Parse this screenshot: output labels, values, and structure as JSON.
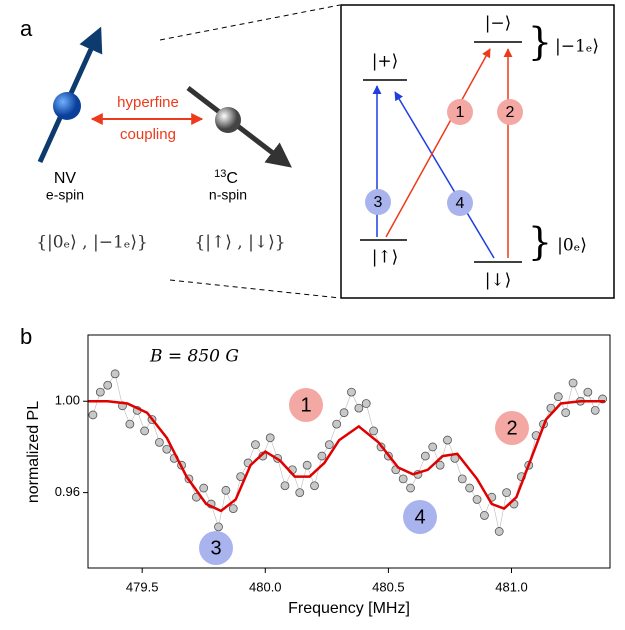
{
  "panel_a": {
    "label": "a",
    "hyperfine": "hyperfine",
    "coupling": "coupling",
    "nv": "NV",
    "e_spin": "e-spin",
    "c13_mass": "13",
    "c13_element": "C",
    "n_spin": "n-spin",
    "e_basis": "{|0ₑ⟩ , |−1ₑ⟩}",
    "n_basis": "{|↑⟩ , |↓⟩}",
    "levels": {
      "plus": "|+⟩",
      "minus": "|−⟩",
      "up": "|↑⟩",
      "down": "|↓⟩",
      "upper_manifold": "|−1ₑ⟩",
      "lower_manifold": "|0ₑ⟩"
    },
    "transitions": [
      "1",
      "2",
      "3",
      "4"
    ]
  },
  "chart_data": {
    "type": "scatter",
    "panel_label": "b",
    "annotation": "B = 850 G",
    "x_label": "Frequency [MHz]",
    "y_label": "normalized PL",
    "xlim": [
      479.28,
      481.4
    ],
    "ylim": [
      0.927,
      1.029
    ],
    "xticks": [
      479.5,
      {
        "value": 480.0,
        "label": "480.0"
      },
      480.5,
      {
        "value": 481.0,
        "label": "481.0"
      }
    ],
    "yticks": [
      {
        "value": 0.96,
        "label": "0.96"
      },
      {
        "value": 1.0,
        "label": "1.00"
      }
    ],
    "series": [
      {
        "name": "data",
        "color": "#c8c8c8",
        "x": [
          479.3,
          479.33,
          479.36,
          479.39,
          479.42,
          479.45,
          479.48,
          479.51,
          479.54,
          479.57,
          479.6,
          479.63,
          479.66,
          479.69,
          479.72,
          479.75,
          479.78,
          479.81,
          479.84,
          479.87,
          479.9,
          479.93,
          479.96,
          479.99,
          480.02,
          480.05,
          480.08,
          480.11,
          480.14,
          480.17,
          480.2,
          480.23,
          480.26,
          480.29,
          480.32,
          480.35,
          480.38,
          480.41,
          480.44,
          480.47,
          480.5,
          480.53,
          480.56,
          480.59,
          480.62,
          480.65,
          480.68,
          480.71,
          480.74,
          480.77,
          480.8,
          480.83,
          480.86,
          480.89,
          480.92,
          480.95,
          480.98,
          481.01,
          481.04,
          481.07,
          481.1,
          481.13,
          481.16,
          481.19,
          481.22,
          481.25,
          481.28,
          481.31,
          481.34,
          481.37
        ],
        "values": [
          0.994,
          1.004,
          1.007,
          1.012,
          0.998,
          0.99,
          0.996,
          0.987,
          0.992,
          0.982,
          0.979,
          0.975,
          0.972,
          0.966,
          0.958,
          0.962,
          0.955,
          0.945,
          0.961,
          0.953,
          0.967,
          0.973,
          0.981,
          0.976,
          0.984,
          0.975,
          0.963,
          0.97,
          0.96,
          0.972,
          0.963,
          0.976,
          0.981,
          0.99,
          0.995,
          1.004,
          0.997,
          0.999,
          0.987,
          0.98,
          0.976,
          0.97,
          0.966,
          0.962,
          0.968,
          0.976,
          0.98,
          0.972,
          0.983,
          0.975,
          0.966,
          0.962,
          0.957,
          0.95,
          0.958,
          0.943,
          0.96,
          0.955,
          0.967,
          0.972,
          0.985,
          0.99,
          0.997,
          1.002,
          0.995,
          1.008,
          1.0,
          1.004,
          0.996,
          1.001
        ]
      },
      {
        "name": "fit",
        "color": "#e00000",
        "x": [
          479.28,
          479.36,
          479.44,
          479.52,
          479.6,
          479.68,
          479.76,
          479.82,
          479.88,
          479.94,
          480.0,
          480.06,
          480.12,
          480.18,
          480.24,
          480.3,
          480.38,
          480.46,
          480.54,
          480.6,
          480.66,
          480.72,
          480.78,
          480.86,
          480.92,
          480.97,
          481.02,
          481.08,
          481.14,
          481.2,
          481.28,
          481.38
        ],
        "values": [
          1.0,
          1.0,
          0.999,
          0.995,
          0.984,
          0.967,
          0.955,
          0.952,
          0.957,
          0.972,
          0.978,
          0.974,
          0.967,
          0.967,
          0.973,
          0.983,
          0.989,
          0.982,
          0.971,
          0.968,
          0.97,
          0.976,
          0.977,
          0.966,
          0.955,
          0.953,
          0.958,
          0.975,
          0.992,
          0.999,
          1.0,
          1.0
        ]
      }
    ],
    "markers": [
      "1",
      "2",
      "3",
      "4"
    ]
  }
}
